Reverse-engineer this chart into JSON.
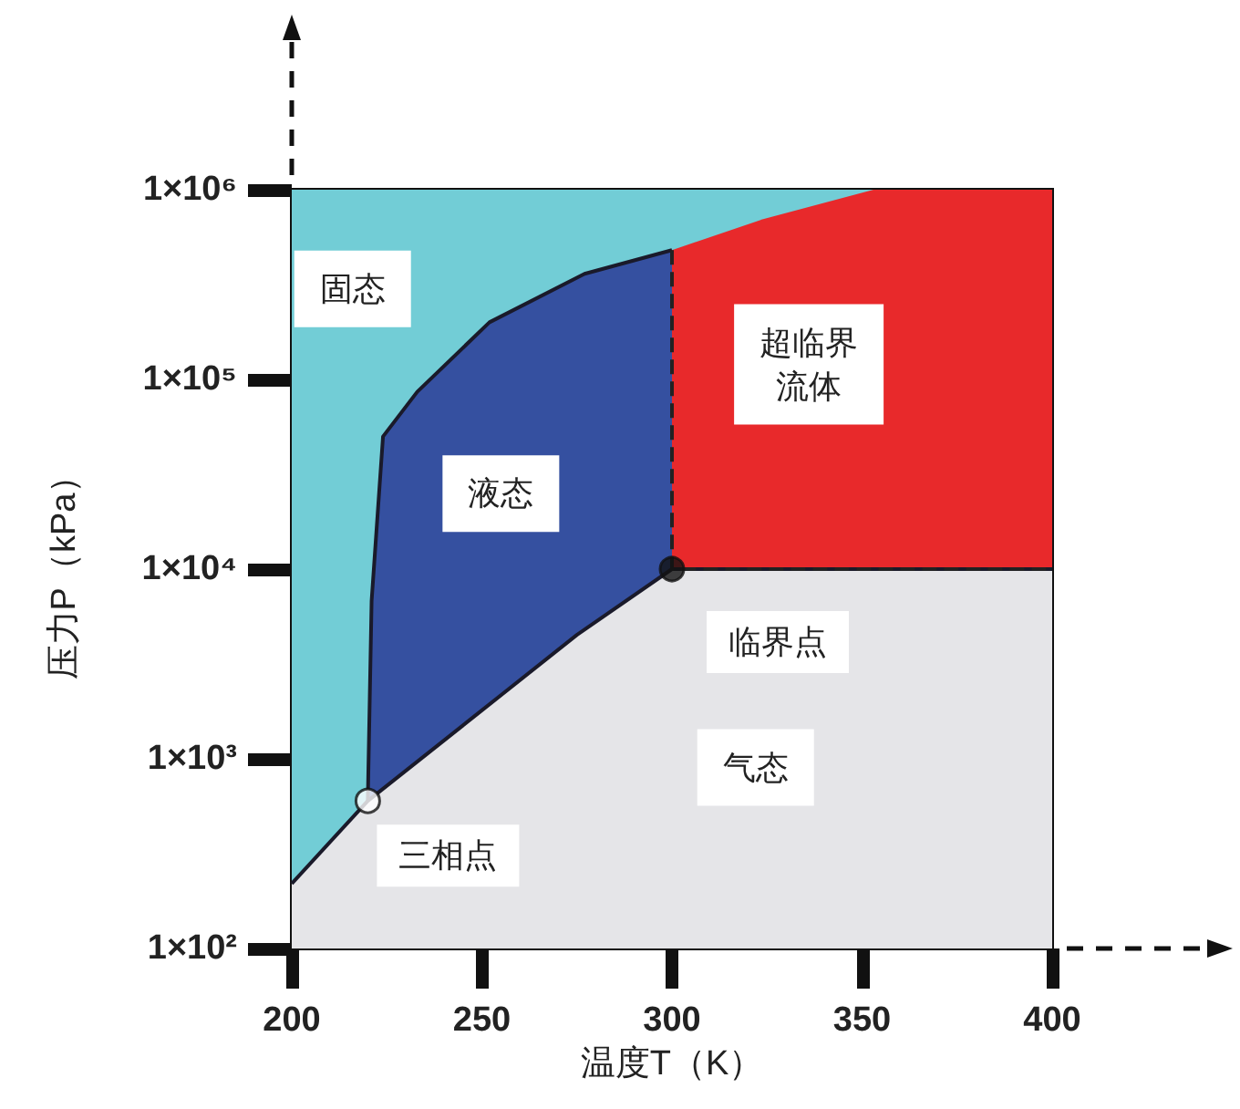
{
  "chart_data": {
    "type": "area",
    "xlabel": "温度T（K）",
    "ylabel": "压力P（kPa）",
    "log": "y",
    "xlim": [
      200,
      400
    ],
    "xticks": [
      200,
      250,
      300,
      350,
      400
    ],
    "ylim": [
      100,
      1000000
    ],
    "yticks": [
      {
        "value": 100,
        "label": "1×10²"
      },
      {
        "value": 1000,
        "label": "1×10³"
      },
      {
        "value": 10000,
        "label": "1×10⁴"
      },
      {
        "value": 100000,
        "label": "1×10⁵"
      },
      {
        "value": 1000000,
        "label": "1×10⁶"
      }
    ],
    "grid": false,
    "legend": false,
    "series": [
      {
        "name": "固态",
        "color": "#72cdd6",
        "x": [
          200,
          353
        ],
        "values": [
          1000000,
          1000000
        ]
      },
      {
        "name": "超临界流体",
        "color": "#e8292b",
        "x": [
          300,
          324,
          353,
          400
        ],
        "values": [
          480000,
          700000,
          1000000,
          1000000
        ]
      },
      {
        "name": "液态",
        "color": "#3550a0",
        "x": [
          220,
          221,
          224,
          233,
          252,
          277,
          300
        ],
        "values": [
          600,
          6800,
          50000,
          86000,
          200000,
          360000,
          480000
        ]
      },
      {
        "name": "气态",
        "color": "#e5e5e8",
        "x": [
          200,
          220,
          250,
          275,
          300,
          400
        ],
        "values": [
          220,
          600,
          1800,
          4500,
          10000,
          10000
        ]
      },
      {
        "type": "line",
        "color": "#222222",
        "line_style": "dashed",
        "x": [
          300,
          300,
          400
        ],
        "values": [
          480000,
          10000,
          10000
        ]
      },
      {
        "type": "scatter",
        "color": "#ffffff",
        "x": [
          220
        ],
        "values": [
          600
        ]
      },
      {
        "type": "scatter",
        "color": "#111111",
        "x": [
          300
        ],
        "values": [
          10000
        ]
      }
    ],
    "annotations": [
      {
        "text": "三相点",
        "x": 220,
        "y": 600
      },
      {
        "text": "临界点",
        "x": 300,
        "y": 10000
      }
    ]
  }
}
